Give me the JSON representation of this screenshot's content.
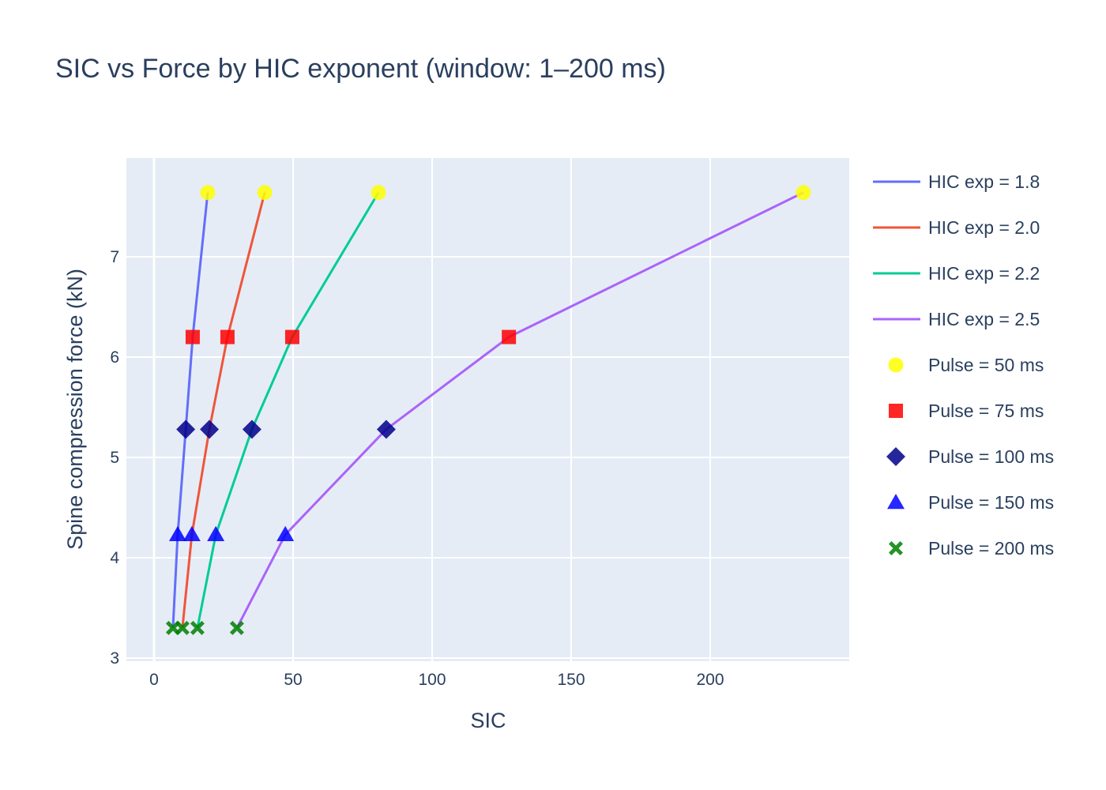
{
  "title": "SIC vs Force by HIC exponent (window: 1–200 ms)",
  "chart_data": {
    "type": "line",
    "title": "SIC vs Force by HIC exponent (window: 1–200 ms)",
    "xlabel": "SIC",
    "ylabel": "Spine compression force (kN)",
    "xlim": [
      -10,
      247
    ],
    "ylim": [
      2.97,
      7.98
    ],
    "xticks": [
      0,
      50,
      100,
      150,
      200
    ],
    "yticks": [
      3,
      4,
      5,
      6,
      7
    ],
    "grid": true,
    "legend_position": "right",
    "force_levels_kN": [
      7.64,
      6.2,
      5.28,
      4.23,
      3.3
    ],
    "series": [
      {
        "name": "HIC exp = 1.8",
        "color": "#636efa",
        "x": [
          19.3,
          13.9,
          11.4,
          8.5,
          6.8
        ],
        "y": [
          7.64,
          6.2,
          5.28,
          4.23,
          3.3
        ]
      },
      {
        "name": "HIC exp = 2.0",
        "color": "#ef553b",
        "x": [
          39.8,
          26.4,
          19.9,
          13.6,
          10.2
        ],
        "y": [
          7.64,
          6.2,
          5.28,
          4.23,
          3.3
        ]
      },
      {
        "name": "HIC exp = 2.2",
        "color": "#00cc96",
        "x": [
          80.7,
          49.7,
          35.2,
          22.2,
          15.6
        ],
        "y": [
          7.64,
          6.2,
          5.28,
          4.23,
          3.3
        ]
      },
      {
        "name": "HIC exp = 2.5",
        "color": "#ab63fa",
        "x": [
          233.5,
          127.6,
          83.5,
          47.2,
          29.8
        ],
        "y": [
          7.64,
          6.2,
          5.28,
          4.23,
          3.3
        ]
      }
    ],
    "marker_series": [
      {
        "name": "Pulse = 50 ms",
        "symbol": "circle",
        "color": "#ffff00",
        "x": [
          19.3,
          39.8,
          80.7,
          233.5
        ],
        "y": 7.64
      },
      {
        "name": "Pulse = 75 ms",
        "symbol": "square",
        "color": "#ff0000",
        "x": [
          13.9,
          26.4,
          49.7,
          127.6
        ],
        "y": 6.2
      },
      {
        "name": "Pulse = 100 ms",
        "symbol": "diamond",
        "color": "#00008b",
        "x": [
          11.4,
          19.9,
          35.2,
          83.5
        ],
        "y": 5.28
      },
      {
        "name": "Pulse = 150 ms",
        "symbol": "triangle-up",
        "color": "#0000ff",
        "x": [
          8.5,
          13.6,
          22.2,
          47.2
        ],
        "y": 4.23
      },
      {
        "name": "Pulse = 200 ms",
        "symbol": "x",
        "color": "#008000",
        "x": [
          6.8,
          10.2,
          15.6,
          29.8
        ],
        "y": 3.3
      }
    ]
  }
}
